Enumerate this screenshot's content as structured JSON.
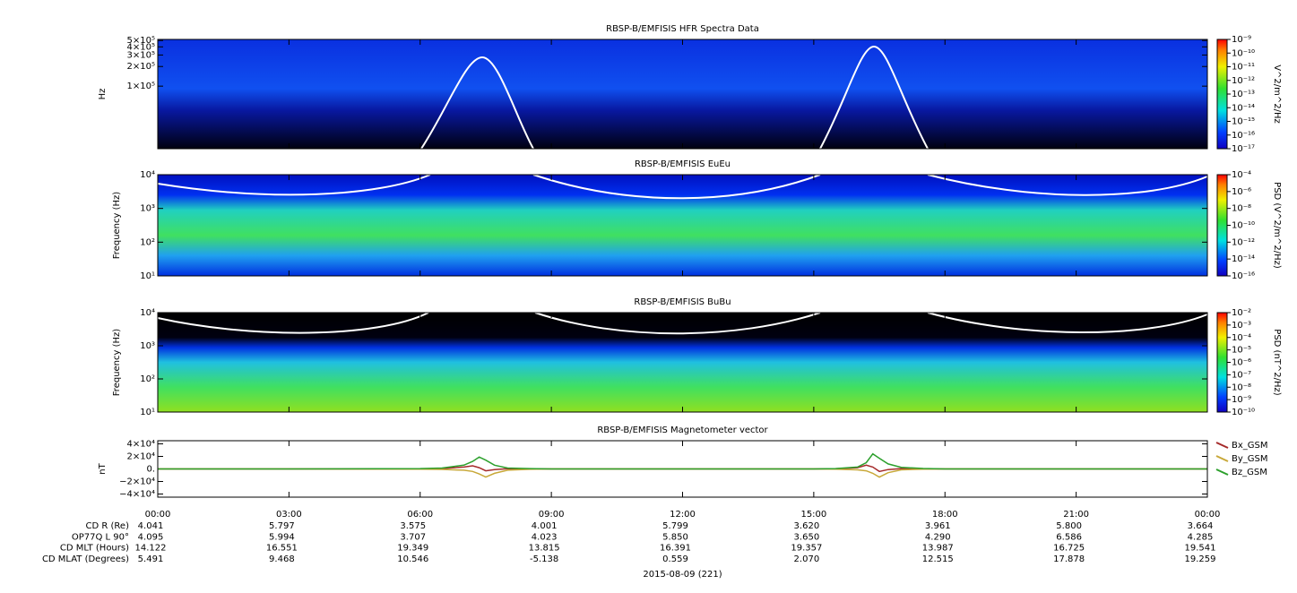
{
  "chart_data": [
    {
      "type": "spectrogram",
      "title": "RBSP-B/EMFISIS  HFR Spectra Data",
      "ylabel": "Hz",
      "log_y": true,
      "ylim": [
        11000,
        520000
      ],
      "yticks": [
        {
          "value": 500000,
          "label": "5×10⁵"
        },
        {
          "value": 400000,
          "label": "4×10⁵"
        },
        {
          "value": 300000,
          "label": "3×10⁵"
        },
        {
          "value": 200000,
          "label": "2×10⁵"
        },
        {
          "value": 100000,
          "label": "1×10⁵"
        }
      ],
      "colorbar_title": "V^2/m^2/Hz",
      "clim": [
        1e-17,
        1e-09
      ],
      "cticks": [
        {
          "value": 1e-09,
          "label": "10⁻⁹"
        },
        {
          "value": 1e-10,
          "label": "10⁻¹⁰"
        },
        {
          "value": 1e-11,
          "label": "10⁻¹¹"
        },
        {
          "value": 1e-12,
          "label": "10⁻¹²"
        },
        {
          "value": 1e-13,
          "label": "10⁻¹³"
        },
        {
          "value": 1e-14,
          "label": "10⁻¹⁴"
        },
        {
          "value": 1e-15,
          "label": "10⁻¹⁵"
        },
        {
          "value": 1e-16,
          "label": "10⁻¹⁶"
        },
        {
          "value": 1e-17,
          "label": "10⁻¹⁷"
        }
      ]
    },
    {
      "type": "spectrogram",
      "title": "RBSP-B/EMFISIS  EuEu",
      "ylabel": "Frequency (Hz)",
      "log_y": true,
      "ylim": [
        10,
        10000
      ],
      "yticks": [
        {
          "value": 10000,
          "label": "10⁴"
        },
        {
          "value": 1000,
          "label": "10³"
        },
        {
          "value": 100,
          "label": "10²"
        },
        {
          "value": 10,
          "label": "10¹"
        }
      ],
      "colorbar_title": "PSD (V^2/m^2/Hz)",
      "clim": [
        1e-16,
        0.0001
      ],
      "cticks": [
        {
          "value": 0.0001,
          "label": "10⁻⁴"
        },
        {
          "value": 1e-06,
          "label": "10⁻⁶"
        },
        {
          "value": 1e-08,
          "label": "10⁻⁸"
        },
        {
          "value": 1e-10,
          "label": "10⁻¹⁰"
        },
        {
          "value": 1e-12,
          "label": "10⁻¹²"
        },
        {
          "value": 1e-14,
          "label": "10⁻¹⁴"
        },
        {
          "value": 1e-16,
          "label": "10⁻¹⁶"
        }
      ]
    },
    {
      "type": "spectrogram",
      "title": "RBSP-B/EMFISIS  BuBu",
      "ylabel": "Frequency (Hz)",
      "log_y": true,
      "ylim": [
        10,
        10000
      ],
      "yticks": [
        {
          "value": 10000,
          "label": "10⁴"
        },
        {
          "value": 1000,
          "label": "10³"
        },
        {
          "value": 100,
          "label": "10²"
        },
        {
          "value": 10,
          "label": "10¹"
        }
      ],
      "colorbar_title": "PSD (nT^2/Hz)",
      "clim": [
        1e-10,
        0.01
      ],
      "cticks": [
        {
          "value": 0.01,
          "label": "10⁻²"
        },
        {
          "value": 0.001,
          "label": "10⁻³"
        },
        {
          "value": 0.0001,
          "label": "10⁻⁴"
        },
        {
          "value": 1e-05,
          "label": "10⁻⁵"
        },
        {
          "value": 1e-06,
          "label": "10⁻⁶"
        },
        {
          "value": 1e-07,
          "label": "10⁻⁷"
        },
        {
          "value": 1e-08,
          "label": "10⁻⁸"
        },
        {
          "value": 1e-09,
          "label": "10⁻⁹"
        },
        {
          "value": 1e-10,
          "label": "10⁻¹⁰"
        }
      ]
    },
    {
      "type": "line",
      "title": "RBSP-B/EMFISIS  Magnetometer vector",
      "ylabel": "nT",
      "ylim": [
        -45000,
        45000
      ],
      "yticks": [
        {
          "value": 40000,
          "label": "4×10⁴"
        },
        {
          "value": 20000,
          "label": "2×10⁴"
        },
        {
          "value": 0,
          "label": "0."
        },
        {
          "value": -20000,
          "label": "−2×10⁴"
        },
        {
          "value": -40000,
          "label": "−4×10⁴"
        }
      ],
      "x": [
        0,
        3,
        6,
        6.5,
        7,
        7.2,
        7.35,
        7.5,
        7.7,
        8,
        8.5,
        9,
        12,
        15,
        15.5,
        16,
        16.2,
        16.35,
        16.5,
        16.7,
        17,
        17.5,
        18,
        21,
        24
      ],
      "series": [
        {
          "name": "Bx_GSM",
          "color": "#a52a2a",
          "values": [
            0,
            0,
            200,
            800,
            3000,
            5000,
            2000,
            -3000,
            -1000,
            300,
            200,
            0,
            0,
            0,
            300,
            2000,
            6000,
            3000,
            -4000,
            -1000,
            500,
            200,
            0,
            0,
            0
          ]
        },
        {
          "name": "By_GSM",
          "color": "#c8a838",
          "values": [
            0,
            0,
            -300,
            -800,
            -2000,
            -4000,
            -8000,
            -13000,
            -7000,
            -2000,
            -500,
            0,
            0,
            0,
            -300,
            -1500,
            -3000,
            -7000,
            -13000,
            -6000,
            -1500,
            -300,
            0,
            0,
            0
          ]
        },
        {
          "name": "Bz_GSM",
          "color": "#2ca02c",
          "values": [
            0,
            0,
            500,
            1500,
            6000,
            12000,
            19000,
            14000,
            6000,
            1500,
            500,
            0,
            0,
            0,
            500,
            3000,
            10000,
            24000,
            17000,
            8000,
            2500,
            700,
            0,
            0,
            0
          ]
        }
      ]
    }
  ],
  "time_axis": {
    "xlim": [
      0,
      24
    ],
    "xticks": [
      {
        "value": 0,
        "label": "00:00"
      },
      {
        "value": 3,
        "label": "03:00"
      },
      {
        "value": 6,
        "label": "06:00"
      },
      {
        "value": 9,
        "label": "09:00"
      },
      {
        "value": 12,
        "label": "12:00"
      },
      {
        "value": 15,
        "label": "15:00"
      },
      {
        "value": 18,
        "label": "18:00"
      },
      {
        "value": 21,
        "label": "21:00"
      },
      {
        "value": 24,
        "label": "00:00"
      }
    ],
    "date": "2015-08-09 (221)"
  },
  "ephemeris": [
    {
      "label": "CD R (Re)",
      "values": [
        "4.041",
        "5.797",
        "3.575",
        "4.001",
        "5.799",
        "3.620",
        "3.961",
        "5.800",
        "3.664"
      ]
    },
    {
      "label": "OP77Q L 90°",
      "values": [
        "4.095",
        "5.994",
        "3.707",
        "4.023",
        "5.850",
        "3.650",
        "4.290",
        "6.586",
        "4.285"
      ]
    },
    {
      "label": "CD MLT (Hours)",
      "values": [
        "14.122",
        "16.551",
        "19.349",
        "13.815",
        "16.391",
        "19.357",
        "13.987",
        "16.725",
        "19.541"
      ]
    },
    {
      "label": "CD MLAT (Degrees)",
      "values": [
        "5.491",
        "9.468",
        "10.546",
        "-5.138",
        "0.559",
        "2.070",
        "12.515",
        "17.878",
        "19.259"
      ]
    }
  ]
}
